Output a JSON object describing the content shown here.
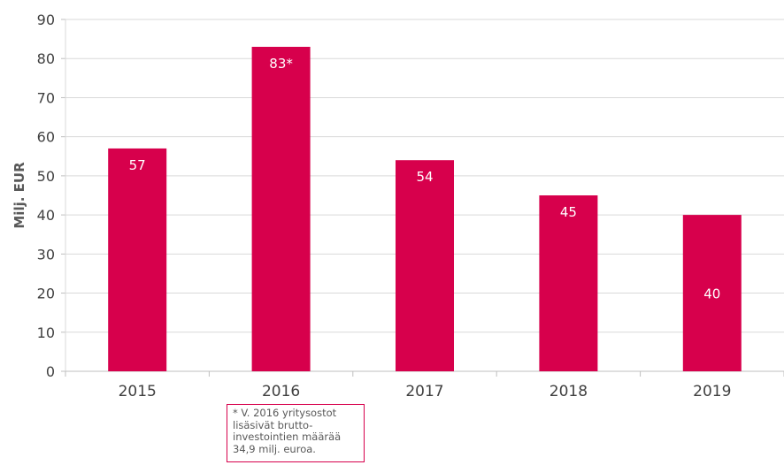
{
  "chart_data": {
    "type": "bar",
    "categories": [
      "2015",
      "2016",
      "2017",
      "2018",
      "2019"
    ],
    "values": [
      57,
      83,
      54,
      45,
      40
    ],
    "data_labels": [
      "57",
      "83*",
      "54",
      "45",
      "40"
    ],
    "ylabel": "Milj. EUR",
    "ylim": [
      0,
      90
    ],
    "yticks": [
      0,
      10,
      20,
      30,
      40,
      50,
      60,
      70,
      80,
      90
    ],
    "grid": true,
    "bar_color": "#d7004c",
    "footnote": "* V. 2016 yritysostot\nlisäsivät brutto-\ninvestointien määrää\n34,9 milj. euroa."
  }
}
